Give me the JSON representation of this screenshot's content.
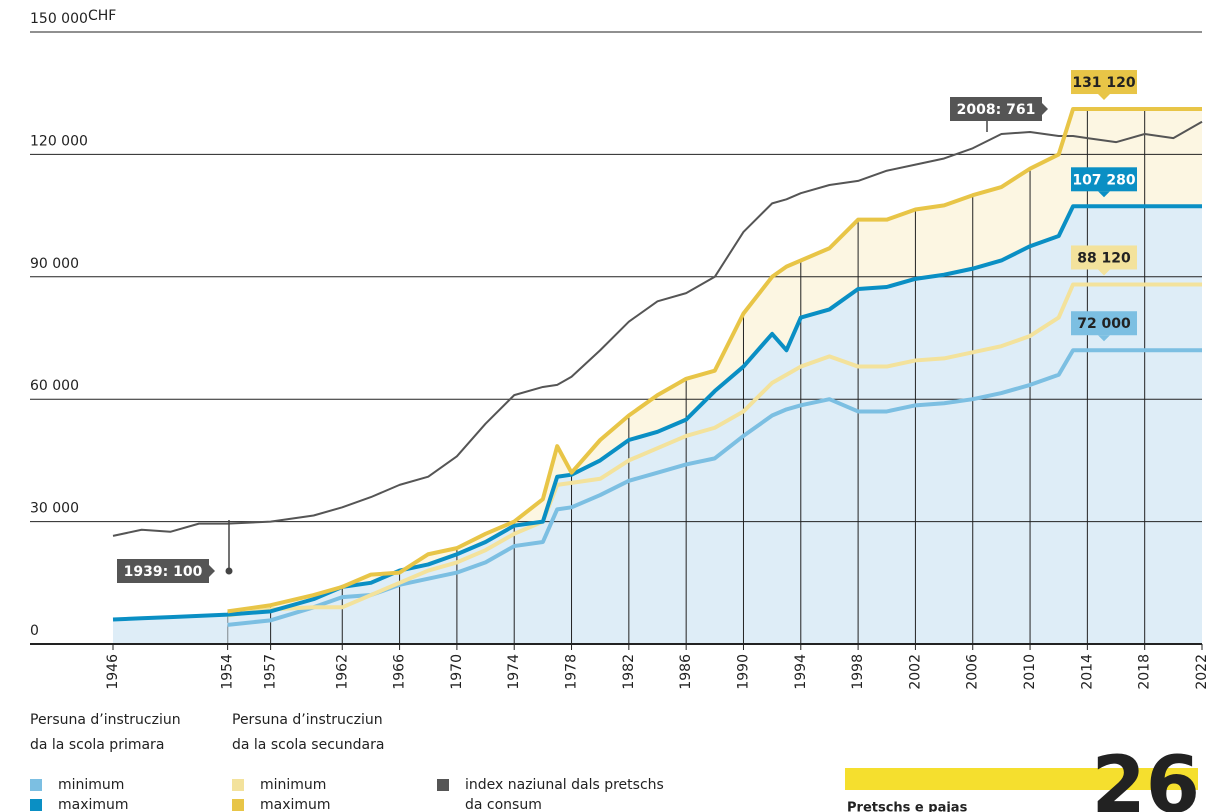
{
  "chart_data": {
    "type": "line",
    "y_unit": "CHF",
    "x": [
      1946,
      1948,
      1950,
      1952,
      1954,
      1957,
      1960,
      1962,
      1964,
      1966,
      1968,
      1970,
      1972,
      1974,
      1976,
      1977,
      1978,
      1980,
      1982,
      1984,
      1986,
      1988,
      1990,
      1992,
      1993,
      1994,
      1996,
      1998,
      2000,
      2002,
      2004,
      2006,
      2008,
      2010,
      2012,
      2013,
      2014,
      2016,
      2018,
      2020,
      2022
    ],
    "xlim": [
      1946,
      2022
    ],
    "xticks": [
      1946,
      1954,
      1957,
      1962,
      1966,
      1970,
      1974,
      1978,
      1982,
      1986,
      1990,
      1994,
      1998,
      2002,
      2006,
      2010,
      2014,
      2018,
      2022
    ],
    "ylim": [
      0,
      150000
    ],
    "yticks": [
      0,
      {
        "value": 30000,
        "label": "30 000"
      },
      {
        "value": 60000,
        "label": "60 000"
      },
      {
        "value": 90000,
        "label": "90 000"
      },
      {
        "value": 120000,
        "label": "120 000"
      },
      {
        "value": 150000,
        "label": "150 000"
      }
    ],
    "grid": true,
    "legend_groups": [
      [
        "Persuna d’instrucziun",
        "da la scola primara"
      ],
      [
        "Persuna d’instrucziun",
        "da la scola secundara"
      ]
    ],
    "series": [
      {
        "name": "minimum",
        "color": "#7cbfe2",
        "end_label": "72 000",
        "values": [
          null,
          null,
          null,
          null,
          4700,
          5800,
          9000,
          11500,
          12000,
          14500,
          16000,
          17500,
          20000,
          24000,
          25000,
          33000,
          33500,
          36500,
          40000,
          42000,
          44000,
          45500,
          51000,
          56000,
          57500,
          58500,
          60000,
          57000,
          57000,
          58500,
          59000,
          60000,
          61500,
          63500,
          66000,
          72000,
          72000,
          72000,
          72000,
          72000,
          72000
        ]
      },
      {
        "name": "maximum",
        "color": "#0a8fc4",
        "end_label": "107 280",
        "values": [
          6000,
          6300,
          6600,
          6900,
          7200,
          8000,
          11000,
          14000,
          15000,
          18000,
          19500,
          22000,
          25000,
          29000,
          30000,
          41000,
          41500,
          45000,
          50000,
          52000,
          55000,
          62000,
          68000,
          76000,
          72000,
          80000,
          82000,
          87000,
          87500,
          89500,
          90500,
          92000,
          94000,
          97500,
          100000,
          107280,
          107280,
          107280,
          107280,
          107280,
          107280
        ]
      },
      {
        "name": "minimum",
        "color": "#f3e29c",
        "end_label": "88 120",
        "values": [
          null,
          null,
          null,
          null,
          7000,
          8500,
          9000,
          9000,
          12000,
          15000,
          18000,
          20000,
          23000,
          27000,
          30000,
          39000,
          39500,
          40500,
          45000,
          48000,
          51000,
          53000,
          57000,
          64000,
          66000,
          68000,
          70500,
          68000,
          68000,
          69500,
          70000,
          71500,
          73000,
          75500,
          80000,
          88120,
          88120,
          88120,
          88120,
          88120,
          88120
        ]
      },
      {
        "name": "maximum",
        "color": "#e8c547",
        "end_label": "131 120",
        "values": [
          null,
          null,
          null,
          null,
          8000,
          9500,
          12000,
          14000,
          17000,
          17500,
          22000,
          23500,
          27000,
          30000,
          35500,
          48500,
          42000,
          50000,
          56000,
          61000,
          65000,
          67000,
          81000,
          90000,
          92500,
          94000,
          97000,
          104000,
          104000,
          106500,
          107500,
          110000,
          112000,
          116500,
          120000,
          131120,
          131120,
          131120,
          131120,
          131120,
          131120
        ]
      },
      {
        "name": [
          "index naziunal dals pretschs",
          "da consum"
        ],
        "color": "#555555",
        "values": [
          26500,
          28000,
          27500,
          29500,
          29500,
          30000,
          31500,
          33500,
          36000,
          39000,
          41000,
          46000,
          54000,
          61000,
          63000,
          63500,
          65500,
          72000,
          79000,
          84000,
          86000,
          90000,
          101000,
          108000,
          109000,
          110500,
          112500,
          113500,
          116000,
          117500,
          119000,
          121500,
          125000,
          125500,
          124500,
          124500,
          124000,
          123000,
          125000,
          124000,
          128000
        ]
      }
    ],
    "annotations": [
      "1939: 100",
      "2008: 761"
    ],
    "footer": {
      "section": "Pretschs e pajas",
      "page": "26"
    }
  }
}
